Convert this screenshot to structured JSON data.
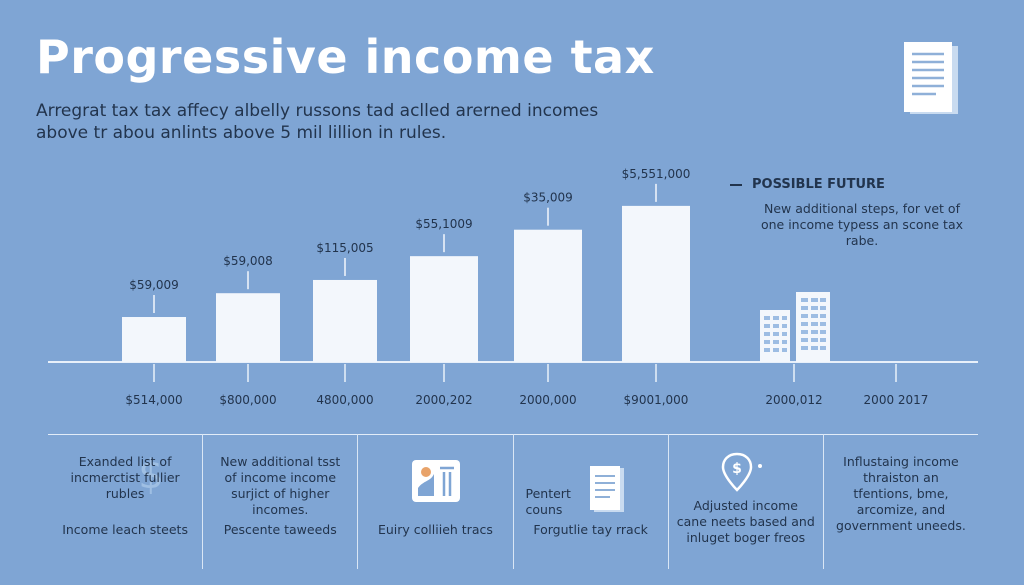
{
  "header": {
    "title": "Progressive income tax",
    "subtitle": "Arregrat tax tax affecy albelly russons tad aclled arerned incomes above tr abou anlints above 5 mil lillion in rules."
  },
  "future": {
    "heading": "POSSIBLE FUTURE",
    "text": "New additional steps, for vet of one income typess an scone tax rabe."
  },
  "chart_data": {
    "type": "bar",
    "categories": [
      "$514,000",
      "$800,000",
      "4800,000",
      "2000,202",
      "2000,000",
      "$9001,000"
    ],
    "values": [
      17,
      26,
      31,
      40,
      50,
      59
    ],
    "data_labels": [
      "$59,009",
      "$59,008",
      "$115,005",
      "$55,1009",
      "$35,009",
      "$5,551,000"
    ],
    "future_categories": [
      "2000,012",
      "2000 2017"
    ],
    "ylim": [
      0,
      65
    ],
    "grid": false,
    "colors": {
      "bar": "#f3f7fc",
      "axis": "#e8f0fa",
      "label": "#22344d"
    }
  },
  "panels": [
    {
      "top": "Exanded list of incmerctist fullier rubles",
      "bottom": "Income leach steets",
      "icon": "dollar-icon"
    },
    {
      "top": "New additional tsst of income income surjict of higher incomes.",
      "bottom": "Pescente taweeds",
      "icon": ""
    },
    {
      "top": "",
      "bottom": "Euiry colliieh tracs",
      "icon": "document-chart-icon"
    },
    {
      "top": "Pentert couns",
      "bottom": "Forgutlie tay rrack",
      "icon": "document-icon"
    },
    {
      "top": "",
      "bottom": "Adjusted income cane neets based and inluget boger freos",
      "icon": "location-dollar-icon"
    },
    {
      "top": "Influstaing income thraiston an tfentions, bme, arcomize, and government uneeds.",
      "bottom": "",
      "icon": ""
    }
  ]
}
